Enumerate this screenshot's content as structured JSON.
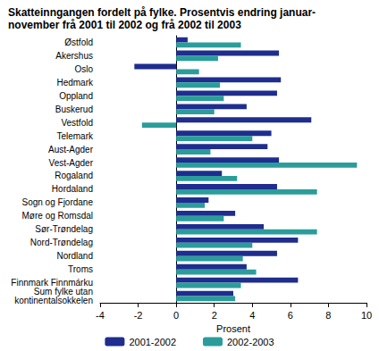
{
  "chart_data": {
    "type": "bar",
    "orientation": "horizontal",
    "title": "Skatteinngangen fordelt på fylke. Prosentvis endring januar-\nnovember frå 2001 til 2002 og frå 2002 til 2003",
    "x_label": "Prosent",
    "categories": [
      "Østfold",
      "Akershus",
      "Oslo",
      "Hedmark",
      "Oppland",
      "Buskerud",
      "Vestfold",
      "Telemark",
      "Aust-Agder",
      "Vest-Agder",
      "Rogaland",
      "Hordaland",
      "Sogn og Fjordane",
      "Møre og Romsdal",
      "Sør-Trøndelag",
      "Nord-Trøndelag",
      "Nordland",
      "Troms",
      "Finnmark Finnmárku",
      "Sum fylke utan\nkontinentalsokkelen"
    ],
    "series": [
      {
        "name": "2001-2002",
        "color": "#1f2d8f",
        "values": [
          0.6,
          5.4,
          -2.2,
          5.5,
          5.3,
          3.7,
          7.1,
          5.0,
          4.8,
          5.4,
          2.4,
          5.3,
          1.7,
          3.1,
          4.6,
          6.4,
          5.3,
          3.7,
          6.4,
          3.0
        ]
      },
      {
        "name": "2002-2003",
        "color": "#2a9d9a",
        "values": [
          3.4,
          2.2,
          1.2,
          2.3,
          2.5,
          2.0,
          -1.8,
          4.0,
          1.8,
          9.5,
          3.2,
          7.4,
          1.5,
          2.5,
          7.4,
          4.0,
          3.5,
          4.2,
          3.4,
          3.1
        ]
      }
    ],
    "xlim": [
      -4,
      10
    ],
    "xticks": [
      -4,
      -2,
      0,
      2,
      4,
      6,
      8,
      10
    ],
    "grid": false,
    "legend": "bottom"
  }
}
